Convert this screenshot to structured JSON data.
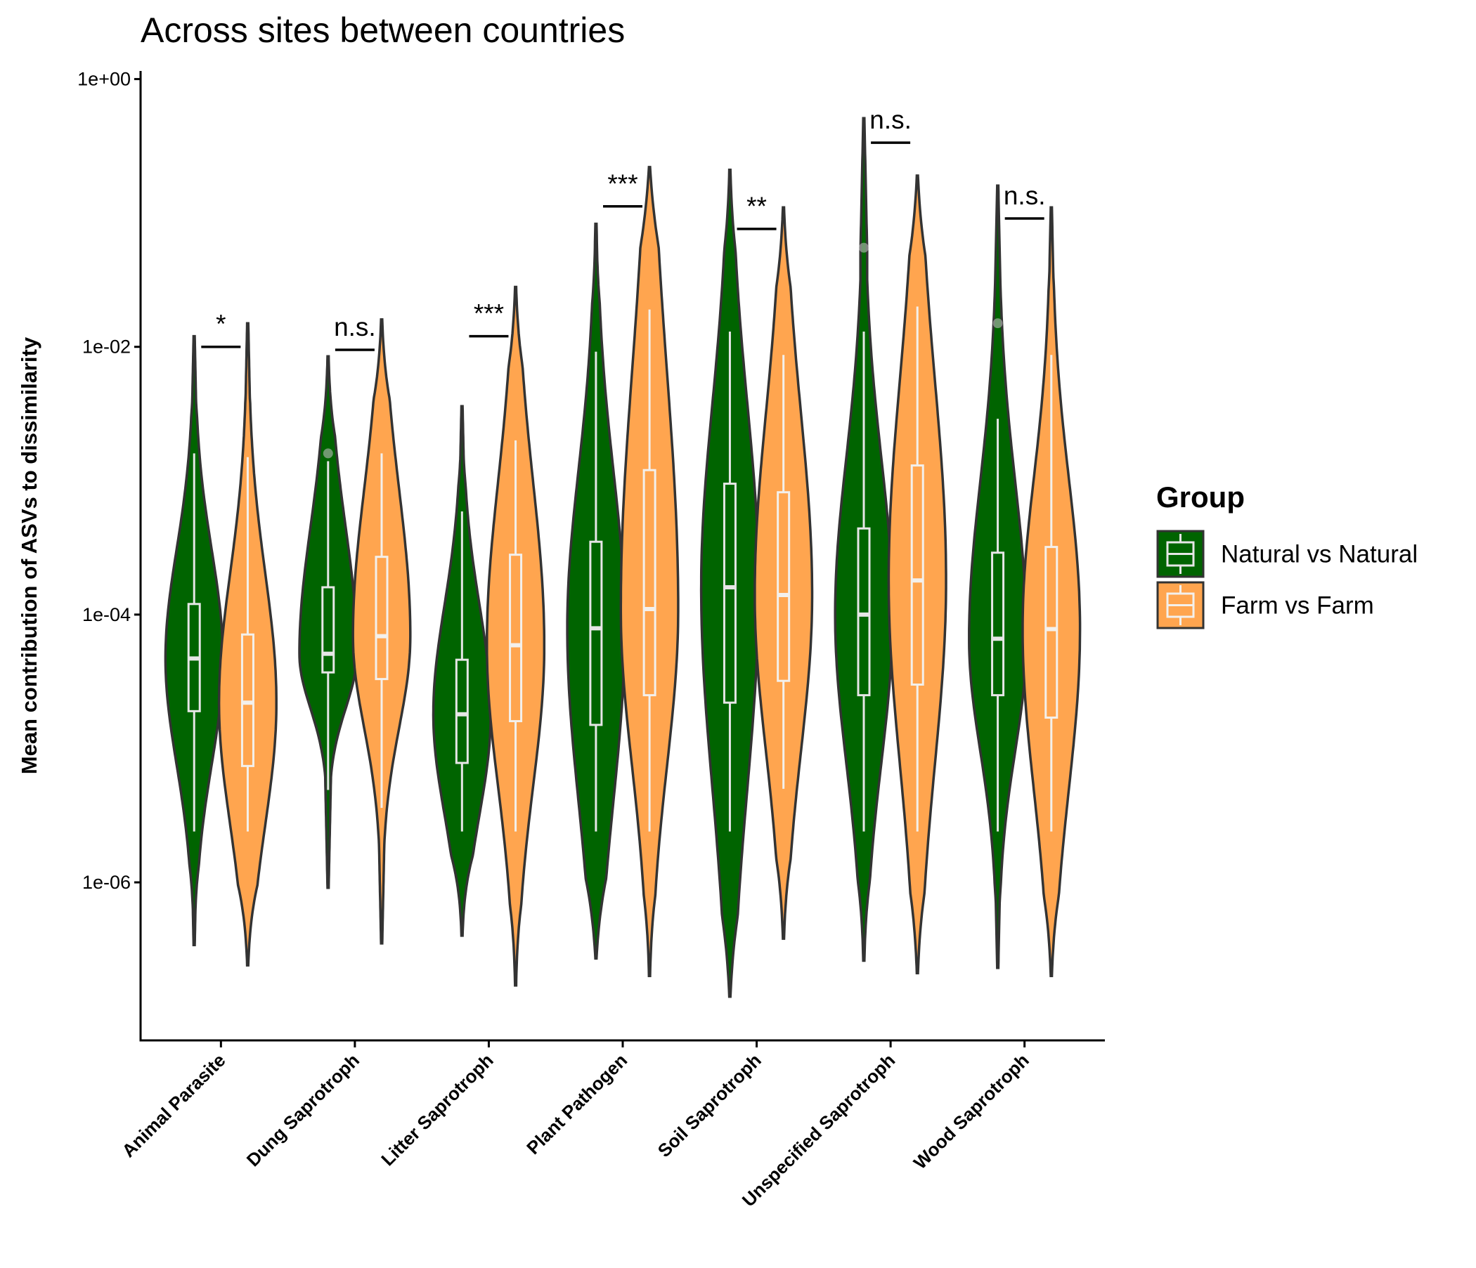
{
  "chart_data": {
    "type": "violin",
    "title": "Across sites between countries",
    "y_label": "Mean contribution of ASVs to dissimilarity",
    "y_log": true,
    "ylim": [
      6.6e-08,
      1.15
    ],
    "yticks": [
      {
        "value": 1,
        "label": "1e+00"
      },
      {
        "value": 0.01,
        "label": "1e-02"
      },
      {
        "value": 0.0001,
        "label": "1e-04"
      },
      {
        "value": 1e-06,
        "label": "1e-06"
      }
    ],
    "categories": [
      "Animal Parasite",
      "Dung Saprotroph",
      "Litter Saprotroph",
      "Plant Pathogen",
      "Soil Saprotroph",
      "Unspecified Saprotroph",
      "Wood Saprotroph"
    ],
    "legend_title": "Group",
    "legend_position": "right",
    "series": [
      {
        "name": "Natural vs Natural",
        "color": "#006400",
        "box_color": "#e6e6e6",
        "violin_max": [
          0.012,
          0.0085,
          0.0036,
          0.083,
          0.21,
          0.51,
          0.16
        ],
        "violin_min": [
          3.4e-07,
          9.1e-07,
          4e-07,
          2.7e-07,
          1.4e-07,
          2.6e-07,
          2.3e-07
        ],
        "whisker_high": [
          0.0016,
          0.0014,
          0.00059,
          0.0092,
          0.013,
          0.013,
          0.0029
        ],
        "q3": [
          0.00012,
          0.00016,
          4.6e-05,
          0.00035,
          0.00095,
          0.00044,
          0.00029
        ],
        "median": [
          4.7e-05,
          5.1e-05,
          1.8e-05,
          7.9e-05,
          0.00016,
          0.0001,
          6.6e-05
        ],
        "q1": [
          1.9e-05,
          3.7e-05,
          7.8e-06,
          1.5e-05,
          2.2e-05,
          2.5e-05,
          2.5e-05
        ],
        "whisker_low": [
          2.4e-06,
          4.9e-06,
          2.4e-06,
          2.4e-06,
          2.4e-06,
          2.4e-06,
          2.4e-06
        ],
        "outliers": [
          null,
          0.0016,
          null,
          null,
          null,
          0.055,
          0.015
        ]
      },
      {
        "name": "Farm vs Farm",
        "color": "#ffa54f",
        "box_color": "#f3f0ec",
        "violin_max": [
          0.015,
          0.016,
          0.028,
          0.22,
          0.11,
          0.19,
          0.11
        ],
        "violin_min": [
          2.4e-07,
          3.5e-07,
          1.7e-07,
          2e-07,
          3.8e-07,
          2.1e-07,
          2e-07
        ],
        "whisker_high": [
          0.0015,
          0.0016,
          0.002,
          0.019,
          0.0087,
          0.02,
          0.0087
        ],
        "q3": [
          7.1e-05,
          0.00027,
          0.00028,
          0.0012,
          0.00082,
          0.0013,
          0.00032
        ],
        "median": [
          2.2e-05,
          6.9e-05,
          5.9e-05,
          0.00011,
          0.00014,
          0.00018,
          7.8e-05
        ],
        "q1": [
          7.4e-06,
          3.3e-05,
          1.6e-05,
          2.5e-05,
          3.2e-05,
          3e-05,
          1.7e-05
        ],
        "whisker_low": [
          2.4e-06,
          3.6e-06,
          2.4e-06,
          2.4e-06,
          5e-06,
          2.4e-06,
          2.4e-06
        ]
      }
    ],
    "annotations": [
      {
        "text": "*",
        "y": 0.01
      },
      {
        "text": "n.s.",
        "y": 0.0095
      },
      {
        "text": "***",
        "y": 0.012
      },
      {
        "text": "***",
        "y": 0.112
      },
      {
        "text": "**",
        "y": 0.076
      },
      {
        "text": "n.s.",
        "y": 0.335
      },
      {
        "text": "n.s.",
        "y": 0.091
      }
    ]
  }
}
